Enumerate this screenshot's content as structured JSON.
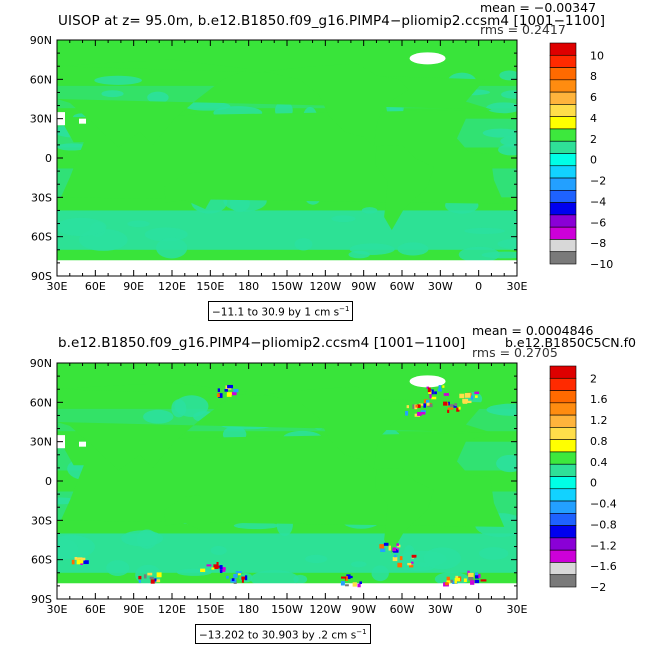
{
  "panels": [
    {
      "title": "UISOP at z=   95.0m, b.e12.B1850.f09_g16.PIMP4−pliomip2.ccsm4 [1001−1100]",
      "mean": "mean = −0.00347",
      "rms": "rms = 0.2417",
      "info": "−11.1 to 30.9 by 1 cm s",
      "info_sup": "−1"
    },
    {
      "title": "b.e12.B1850.f09_g16.PIMP4−pliomip2.ccsm4 [1001−1100]",
      "mean": "mean = 0.0004846",
      "rms": "rms = 0.2705",
      "extra": "b.e12.B1850C5CN.f0",
      "info": "−13.202 to 30.903 by .2 cm s",
      "info_sup": "−1"
    }
  ],
  "chart_data": [
    {
      "type": "heatmap",
      "title": "UISOP at z=   95.0m, b.e12.B1850.f09_g16.PIMP4−pliomip2.ccsm4 [1001−1100]",
      "x_ticks": [
        "30E",
        "60E",
        "90E",
        "120E",
        "150E",
        "180",
        "150W",
        "120W",
        "90W",
        "60W",
        "30W",
        "0",
        "30E"
      ],
      "y_ticks": [
        "90N",
        "60N",
        "30N",
        "0",
        "30S",
        "60S",
        "90S"
      ],
      "lon_range": [
        30,
        390
      ],
      "lat_range": [
        -90,
        90
      ],
      "colorbar_labels": [
        "10",
        "8",
        "6",
        "4",
        "2",
        "0",
        "−2",
        "−4",
        "−6",
        "−8",
        "−10"
      ],
      "colors": [
        "#ffffff",
        "#de0000",
        "#ff2a00",
        "#ff6a00",
        "#ff8c10",
        "#ffb43c",
        "#ffde4a",
        "#ffff00",
        "#3de83d",
        "#2fe098",
        "#00ffe6",
        "#12d2ff",
        "#23a0ff",
        "#1e62ff",
        "#0000ef",
        "#8a00d6",
        "#cd00d9",
        "#d8d8d8",
        "#7a7a7a"
      ],
      "dominant_field": "+0 to +1 (green) over most of the ocean, 0 to −1 (cyan) bands in subtropics and high southern latitudes",
      "mean": -0.00347,
      "rms": 0.2417,
      "data_min": -11.1,
      "data_max": 30.9,
      "contour_interval": 1,
      "units": "cm s−1"
    },
    {
      "type": "heatmap",
      "title": "b.e12.B1850.f09_g16.PIMP4−pliomip2.ccsm4 [1001−1100]",
      "x_ticks": [
        "30E",
        "60E",
        "90E",
        "120E",
        "150E",
        "180",
        "150W",
        "120W",
        "90W",
        "60W",
        "30W",
        "0",
        "30E"
      ],
      "y_ticks": [
        "90N",
        "60N",
        "30N",
        "0",
        "30S",
        "60S",
        "90S"
      ],
      "lon_range": [
        30,
        390
      ],
      "lat_range": [
        -90,
        90
      ],
      "colorbar_labels": [
        "2",
        "1.6",
        "1.2",
        "0.8",
        "0.4",
        "0",
        "−0.4",
        "−0.8",
        "−1.2",
        "−1.6",
        "−2"
      ],
      "colors": [
        "#ffffff",
        "#de0000",
        "#ff2a00",
        "#ff6a00",
        "#ff8c10",
        "#ffb43c",
        "#ffde4a",
        "#ffff00",
        "#3de83d",
        "#2fe098",
        "#00ffe6",
        "#12d2ff",
        "#23a0ff",
        "#1e62ff",
        "#0000ef",
        "#8a00d6",
        "#cd00d9",
        "#d8d8d8",
        "#7a7a7a"
      ],
      "mean": 0.0004846,
      "rms": 0.2705,
      "data_min": -13.202,
      "data_max": 30.903,
      "contour_interval": 0.2,
      "units": "cm s−1"
    }
  ]
}
